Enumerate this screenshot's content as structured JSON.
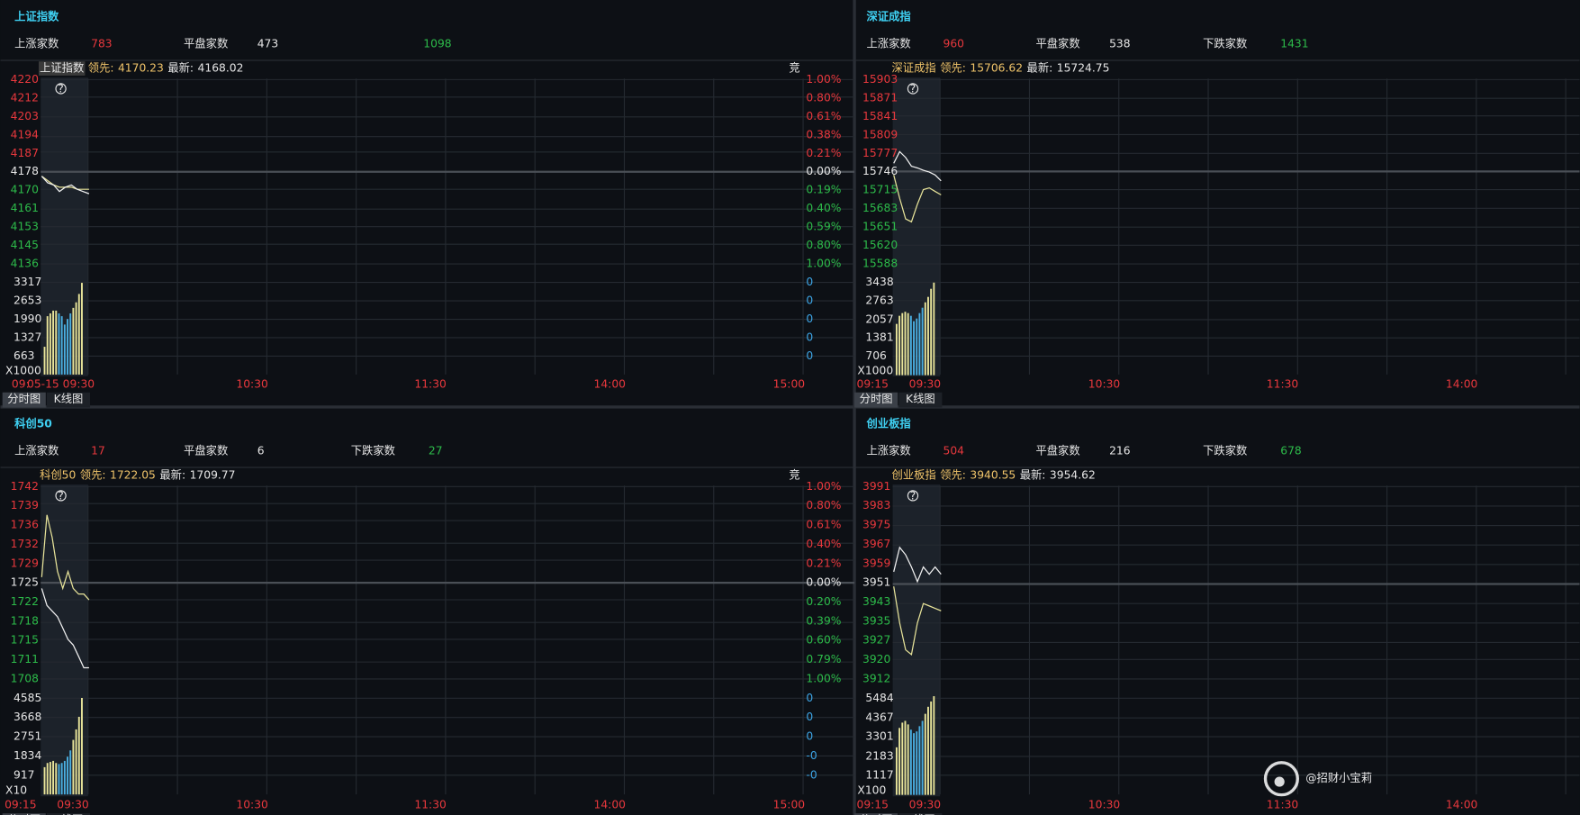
{
  "panels": [
    {
      "title": "上证指数",
      "stats": [
        {
          "label": "上涨家数",
          "value": 783
        },
        {
          "label": "平盘家数",
          "value": 473
        },
        {
          "value": 1098
        }
      ],
      "info": {
        "name": "上证指数",
        "lead_label": "领先:",
        "lead": 4170.23,
        "last_label": "最新:",
        "last": 4168.02
      },
      "corner": "竞",
      "price_ticks": [
        4220,
        4212,
        4203,
        4194,
        4187,
        4178,
        4170,
        4161,
        4153,
        4145,
        4136
      ],
      "pct_ticks": [
        "1.00%",
        "0.80%",
        "0.61%",
        "0.38%",
        "0.21%",
        "0.00%",
        "0.19%",
        "0.40%",
        "0.59%",
        "0.80%",
        "1.00%"
      ],
      "vol_ticks": [
        3317,
        2653,
        1990,
        1327,
        663
      ],
      "vol_right": [
        0,
        0,
        0,
        0,
        0
      ],
      "vol_unit": "X1000",
      "times": [
        "09:",
        "05-15 09:30",
        "10:30",
        "11:30",
        "14:00",
        "15:00"
      ],
      "price": [
        4176,
        4173,
        4172,
        4169,
        4171,
        4172,
        4170,
        4169,
        4168
      ],
      "avg": [
        4176,
        4174,
        4172,
        4171,
        4171,
        4171,
        4170,
        4170,
        4170
      ],
      "volume": [
        1000,
        2100,
        2200,
        2300,
        2300,
        2200,
        2100,
        1800,
        2000,
        2200,
        2400,
        2600,
        2900,
        3300
      ]
    },
    {
      "title": "深证成指",
      "stats": [
        {
          "label": "上涨家数",
          "value": 960
        },
        {
          "label": "平盘家数",
          "value": 538
        },
        {
          "label": "下跌家数",
          "value": 1431
        }
      ],
      "info": {
        "name": "深证成指",
        "lead_label": "领先:",
        "lead": 15706.62,
        "last_label": "最新:",
        "last": 15724.75
      },
      "price_ticks": [
        15903,
        15871,
        15841,
        15809,
        15777,
        15746,
        15715,
        15683,
        15651,
        15620,
        15588
      ],
      "vol_ticks": [
        3438,
        2763,
        2057,
        1381,
        706
      ],
      "vol_unit": "X1000",
      "times": [
        "09:15",
        "09:30",
        "10:30",
        "11:30",
        "14:00"
      ],
      "price": [
        15760,
        15780,
        15770,
        15755,
        15752,
        15748,
        15745,
        15740,
        15730
      ],
      "avg": [
        15740,
        15700,
        15665,
        15660,
        15690,
        15715,
        15718,
        15712,
        15706
      ],
      "volume": [
        1900,
        2200,
        2300,
        2350,
        2300,
        2200,
        2000,
        2100,
        2300,
        2500,
        2700,
        2900,
        3200,
        3430
      ]
    },
    {
      "title": "科创50",
      "stats": [
        {
          "label": "上涨家数",
          "value": 17
        },
        {
          "label": "平盘家数",
          "value": 6
        },
        {
          "label": "下跌家数",
          "value": 27
        }
      ],
      "info": {
        "name": "科创50",
        "lead_label": "领先:",
        "lead": 1722.05,
        "last_label": "最新:",
        "last": 1709.77
      },
      "corner": "竞",
      "price_ticks": [
        1742,
        1739,
        1736,
        1732,
        1729,
        1725,
        1722,
        1718,
        1715,
        1711,
        1708
      ],
      "pct_ticks": [
        "1.00%",
        "0.80%",
        "0.61%",
        "0.40%",
        "0.21%",
        "0.00%",
        "0.20%",
        "0.39%",
        "0.60%",
        "0.79%",
        "1.00%"
      ],
      "vol_ticks": [
        4585,
        3668,
        2751,
        1834,
        917
      ],
      "vol_right": [
        0,
        0,
        0,
        "-0",
        "-0"
      ],
      "vol_unit": "X10",
      "times": [
        "09:15",
        "09:30",
        "10:30",
        "11:30",
        "14:00",
        "15:00"
      ],
      "price": [
        1724,
        1721,
        1720,
        1719,
        1717,
        1715,
        1714,
        1712,
        1710,
        1710
      ],
      "avg": [
        1726,
        1737,
        1733,
        1727,
        1724,
        1727,
        1724,
        1723,
        1723,
        1722
      ],
      "volume": [
        1300,
        1500,
        1550,
        1600,
        1500,
        1450,
        1500,
        1600,
        1800,
        2100,
        2600,
        3100,
        3700,
        4600
      ]
    },
    {
      "title": "创业板指",
      "stats": [
        {
          "label": "上涨家数",
          "value": 504
        },
        {
          "label": "平盘家数",
          "value": 216
        },
        {
          "label": "下跌家数",
          "value": 678
        }
      ],
      "info": {
        "name": "创业板指",
        "lead_label": "领先:",
        "lead": 3940.55,
        "last_label": "最新:",
        "last": 3954.62
      },
      "price_ticks": [
        3991,
        3983,
        3975,
        3967,
        3959,
        3951,
        3943,
        3935,
        3927,
        3920,
        3912
      ],
      "vol_ticks": [
        5484,
        4367,
        3301,
        2183,
        1117
      ],
      "vol_unit": "X100",
      "times": [
        "09:15",
        "09:30",
        "10:30",
        "11:30",
        "14:00"
      ],
      "price": [
        3956,
        3966,
        3963,
        3958,
        3952,
        3958,
        3955,
        3958,
        3955
      ],
      "avg": [
        3950,
        3935,
        3924,
        3922,
        3935,
        3943,
        3942,
        3941,
        3940
      ],
      "volume": [
        2700,
        3800,
        4100,
        4200,
        4000,
        3700,
        3500,
        3600,
        3900,
        4200,
        4600,
        5000,
        5300,
        5600
      ]
    }
  ],
  "tabs": [
    "分时图",
    "K线图"
  ],
  "watermark": "@招财小宝莉"
}
